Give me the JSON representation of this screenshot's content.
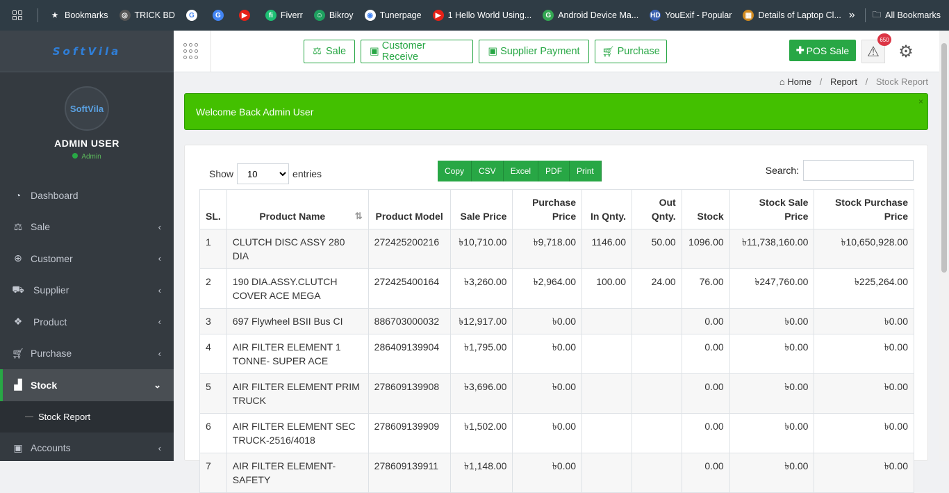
{
  "bookmarks": [
    {
      "label": "Bookmarks",
      "color": "#2f3c45",
      "icon": "star-icon"
    },
    {
      "label": "TRICK BD",
      "color": "#555",
      "icon": "trickbd-icon"
    },
    {
      "label": "",
      "color": "#ffffff",
      "icon": "google-icon"
    },
    {
      "label": "",
      "color": "#4285f4",
      "icon": "google-translate-icon"
    },
    {
      "label": "",
      "color": "#e62117",
      "icon": "youtube-icon"
    },
    {
      "label": "Fiverr",
      "color": "#1dbf73",
      "icon": "fiverr-icon"
    },
    {
      "label": "Bikroy",
      "color": "#1ea05f",
      "icon": "bikroy-icon"
    },
    {
      "label": "Tunerpage",
      "color": "#ffffff",
      "icon": "globe-icon"
    },
    {
      "label": "1 Hello World Using...",
      "color": "#e62117",
      "icon": "youtube-icon"
    },
    {
      "label": "Android Device Ma...",
      "color": "#34a853",
      "icon": "google-icon"
    },
    {
      "label": "YouExif - Popular",
      "color": "#3a5fb0",
      "icon": "hd-icon"
    },
    {
      "label": "Details of Laptop Cl...",
      "color": "#d08a20",
      "icon": "site-icon"
    }
  ],
  "all_bookmarks": "All Bookmarks",
  "sidebar": {
    "brand": "SoftVila",
    "avatar_text": "SoftVila",
    "user": "ADMIN USER",
    "role": "Admin",
    "items": [
      {
        "label": "Dashboard",
        "icon": "dashboard-icon"
      },
      {
        "label": "Sale",
        "icon": "balance-scale-icon"
      },
      {
        "label": "Customer",
        "icon": "customer-icon"
      },
      {
        "label": "Supplier",
        "icon": "supplier-icon"
      },
      {
        "label": "Product",
        "icon": "product-icon"
      },
      {
        "label": "Purchase",
        "icon": "cart-icon"
      },
      {
        "label": "Stock",
        "icon": "chart-icon"
      }
    ],
    "sub_item": "Stock Report",
    "after": {
      "label": "Accounts",
      "icon": "money-icon"
    }
  },
  "topnav": {
    "sale": "Sale",
    "customer_receive": "Customer Receive",
    "supplier_payment": "Supplier Payment",
    "purchase": "Purchase",
    "pos_sale": "POS Sale",
    "badge": "650"
  },
  "breadcrumb": {
    "home": "Home",
    "report": "Report",
    "current": "Stock Report"
  },
  "alert": {
    "text": "Welcome Back Admin User",
    "close": "×"
  },
  "table_controls": {
    "show": "Show",
    "entries": "entries",
    "page_size": "10",
    "search": "Search:",
    "buttons": [
      "Copy",
      "CSV",
      "Excel",
      "PDF",
      "Print"
    ]
  },
  "columns": [
    "SL.",
    "Product Name",
    "Product Model",
    "Sale Price",
    "Purchase Price",
    "In Qnty.",
    "Out Qnty.",
    "Stock",
    "Stock Sale Price",
    "Stock Purchase Price"
  ],
  "rows": [
    [
      "1",
      "CLUTCH DISC ASSY 280 DIA",
      "272425200216",
      "৳10,710.00",
      "৳9,718.00",
      "1146.00",
      "50.00",
      "1096.00",
      "৳11,738,160.00",
      "৳10,650,928.00"
    ],
    [
      "2",
      "190 DIA.ASSY.CLUTCH COVER ACE MEGA",
      "272425400164",
      "৳3,260.00",
      "৳2,964.00",
      "100.00",
      "24.00",
      "76.00",
      "৳247,760.00",
      "৳225,264.00"
    ],
    [
      "3",
      "697 Flywheel BSII Bus CI",
      "886703000032",
      "৳12,917.00",
      "৳0.00",
      "",
      "",
      "0.00",
      "৳0.00",
      "৳0.00"
    ],
    [
      "4",
      "AIR FILTER ELEMENT 1 TONNE- SUPER ACE",
      "286409139904",
      "৳1,795.00",
      "৳0.00",
      "",
      "",
      "0.00",
      "৳0.00",
      "৳0.00"
    ],
    [
      "5",
      "AIR FILTER ELEMENT PRIM TRUCK",
      "278609139908",
      "৳3,696.00",
      "৳0.00",
      "",
      "",
      "0.00",
      "৳0.00",
      "৳0.00"
    ],
    [
      "6",
      "AIR FILTER ELEMENT SEC TRUCK-2516/4018",
      "278609139909",
      "৳1,502.00",
      "৳0.00",
      "",
      "",
      "0.00",
      "৳0.00",
      "৳0.00"
    ],
    [
      "7",
      "AIR FILTER ELEMENT-SAFETY",
      "278609139911",
      "৳1,148.00",
      "৳0.00",
      "",
      "",
      "0.00",
      "৳0.00",
      "৳0.00"
    ]
  ]
}
